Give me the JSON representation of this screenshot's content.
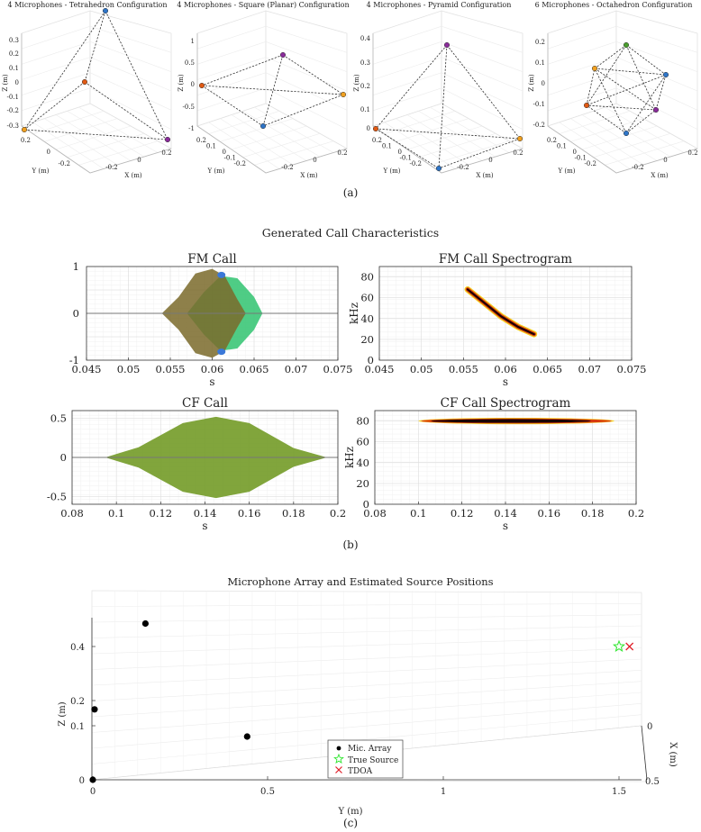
{
  "panel_labels": {
    "a": "(a)",
    "b": "(b)",
    "c": "(c)"
  },
  "panel_a": {
    "plots": [
      {
        "title": "4 Microphones - Tetrahedron Configuration",
        "z_label": "Z (m)",
        "y_label": "Y (m)",
        "x_label": "X (m)",
        "z_ticks": [
          "0.3",
          "0.2",
          "0.1",
          "0",
          "-0.1",
          "-0.2",
          "-0.3"
        ],
        "y_ticks": [
          "0.2",
          "0",
          "-0.2"
        ],
        "x_ticks": [
          "-0.2",
          "0",
          "0.2"
        ]
      },
      {
        "title": "4 Microphones - Square (Planar) Configuration",
        "z_label": "Z (m)",
        "y_label": "Y (m)",
        "x_label": "X (m)",
        "z_ticks": [
          "1",
          "0.5",
          "0",
          "-0.5",
          "-1"
        ],
        "y_ticks": [
          "0.2",
          "0.1",
          "0",
          "-0.1",
          "-0.2"
        ],
        "x_ticks": [
          "-0.2",
          "0",
          "0.2"
        ]
      },
      {
        "title": "4 Microphones - Pyramid Configuration",
        "z_label": "Z (m)",
        "y_label": "Y (m)",
        "x_label": "X (m)",
        "z_ticks": [
          "0.4",
          "0.3",
          "0.2",
          "0.1",
          "0"
        ],
        "y_ticks": [
          "0.2",
          "0.1",
          "0",
          "-0.1",
          "-0.2"
        ],
        "x_ticks": [
          "-0.2",
          "0",
          "0.2"
        ]
      },
      {
        "title": "6 Microphones - Octahedron Configuration",
        "z_label": "Z (m)",
        "y_label": "Y (m)",
        "x_label": "X (m)",
        "z_ticks": [
          "0.2",
          "0.1",
          "0",
          "-0.1",
          "-0.2"
        ],
        "y_ticks": [
          "0.2",
          "0.1",
          "0",
          "-0.1",
          "-0.2"
        ],
        "x_ticks": [
          "-0.2",
          "0",
          "0.2"
        ]
      }
    ]
  },
  "panel_b": {
    "super_title": "Generated Call Characteristics",
    "fm_call": {
      "title": "FM Call",
      "xlabel": "s",
      "xticks": [
        "0.045",
        "0.05",
        "0.055",
        "0.06",
        "0.065",
        "0.07",
        "0.075"
      ],
      "yticks": [
        "1",
        "0",
        "-1"
      ]
    },
    "fm_spec": {
      "title": "FM Call Spectrogram",
      "xlabel": "s",
      "ylabel": "kHz",
      "xticks": [
        "0.045",
        "0.05",
        "0.055",
        "0.06",
        "0.065",
        "0.07",
        "0.075"
      ],
      "yticks": [
        "80",
        "60",
        "40",
        "20",
        "0"
      ]
    },
    "cf_call": {
      "title": "CF Call",
      "xlabel": "s",
      "xticks": [
        "0.08",
        "0.1",
        "0.12",
        "0.14",
        "0.16",
        "0.18",
        "0.2"
      ],
      "yticks": [
        "0.5",
        "0",
        "-0.5"
      ]
    },
    "cf_spec": {
      "title": "CF Call Spectrogram",
      "xlabel": "s",
      "ylabel": "kHz",
      "xticks": [
        "0.08",
        "0.1",
        "0.12",
        "0.14",
        "0.16",
        "0.18",
        "0.2"
      ],
      "yticks": [
        "80",
        "60",
        "40",
        "20",
        "0"
      ]
    }
  },
  "panel_c": {
    "title": "Microphone Array and Estimated Source Positions",
    "xlabel": "Y (m)",
    "ylabel": "Z (m)",
    "depth_label": "X (m)",
    "xticks": [
      "0",
      "0.5",
      "1",
      "1.5"
    ],
    "yticks": [
      "0.4",
      "0.2",
      "0.1",
      "0"
    ],
    "depth_ticks": [
      "0",
      "0.5"
    ],
    "legend": [
      "Mic. Array",
      "True Source",
      "TDOA"
    ]
  },
  "chart_data": [
    {
      "type": "scatter",
      "title": "4 Microphones - Tetrahedron Configuration",
      "xlabel": "X (m)",
      "ylabel": "Y (m)",
      "zlabel": "Z (m)",
      "grid": true,
      "zlim": [
        -0.3,
        0.3
      ],
      "xlim": [
        -0.2,
        0.2
      ],
      "ylim": [
        -0.2,
        0.2
      ]
    },
    {
      "type": "scatter",
      "title": "4 Microphones - Square (Planar) Configuration",
      "xlabel": "X (m)",
      "ylabel": "Y (m)",
      "zlabel": "Z (m)",
      "grid": true,
      "zlim": [
        -1,
        1
      ],
      "xlim": [
        -0.2,
        0.2
      ],
      "ylim": [
        -0.2,
        0.2
      ]
    },
    {
      "type": "scatter",
      "title": "4 Microphones - Pyramid Configuration",
      "xlabel": "X (m)",
      "ylabel": "Y (m)",
      "zlabel": "Z (m)",
      "grid": true,
      "zlim": [
        0,
        0.4
      ],
      "xlim": [
        -0.2,
        0.2
      ],
      "ylim": [
        -0.2,
        0.2
      ]
    },
    {
      "type": "scatter",
      "title": "6 Microphones - Octahedron Configuration",
      "xlabel": "X (m)",
      "ylabel": "Y (m)",
      "zlabel": "Z (m)",
      "grid": true,
      "zlim": [
        -0.2,
        0.2
      ],
      "xlim": [
        -0.2,
        0.2
      ],
      "ylim": [
        -0.2,
        0.2
      ]
    },
    {
      "type": "area",
      "title": "FM Call",
      "xlabel": "s",
      "grid": true,
      "xlim": [
        0.045,
        0.075
      ],
      "ylim": [
        -1,
        1
      ],
      "series": [
        {
          "color": "#7a6a2a",
          "x": [
            0.045,
            0.054,
            0.056,
            0.058,
            0.06,
            0.0615,
            0.063,
            0.064,
            0.075
          ],
          "values": [
            0,
            0,
            0.35,
            0.85,
            0.95,
            0.8,
            0.3,
            0,
            0
          ]
        },
        {
          "color": "#3cc678",
          "x": [
            0.045,
            0.057,
            0.059,
            0.061,
            0.063,
            0.065,
            0.066,
            0.075
          ],
          "values": [
            0,
            0,
            0.45,
            0.8,
            0.75,
            0.35,
            0,
            0
          ]
        }
      ]
    },
    {
      "type": "heatmap",
      "title": "FM Call Spectrogram",
      "xlabel": "s",
      "ylabel": "kHz",
      "grid": true,
      "xlim": [
        0.045,
        0.075
      ],
      "ylim": [
        0,
        90
      ],
      "ridge": {
        "x": [
          0.0555,
          0.0575,
          0.0595,
          0.0615,
          0.0634
        ],
        "y": [
          68,
          55,
          42,
          32,
          25
        ]
      }
    },
    {
      "type": "area",
      "title": "CF Call",
      "xlabel": "s",
      "grid": true,
      "xlim": [
        0.08,
        0.2
      ],
      "ylim": [
        -0.6,
        0.6
      ],
      "series": [
        {
          "color": "#7f9a2e",
          "x": [
            0.08,
            0.095,
            0.11,
            0.13,
            0.145,
            0.16,
            0.18,
            0.195,
            0.2
          ],
          "values": [
            0,
            0,
            0.13,
            0.44,
            0.52,
            0.44,
            0.12,
            0,
            0
          ]
        }
      ]
    },
    {
      "type": "heatmap",
      "title": "CF Call Spectrogram",
      "xlabel": "s",
      "ylabel": "kHz",
      "grid": true,
      "xlim": [
        0.08,
        0.2
      ],
      "ylim": [
        0,
        90
      ],
      "ridge": {
        "x": [
          0.1,
          0.19
        ],
        "y": [
          80,
          80
        ]
      }
    },
    {
      "type": "scatter",
      "title": "Microphone Array and Estimated Source Positions",
      "xlabel": "Y (m)",
      "ylabel": "Z (m)",
      "grid": true,
      "series": [
        {
          "name": "Mic. Array",
          "color": "#000000",
          "x": [
            0,
            0.005,
            0.15,
            0.44
          ],
          "y": [
            0,
            0.165,
            0.485,
            0.08
          ]
        },
        {
          "name": "True Source",
          "color": "#2ee62e",
          "x": [
            1.5
          ],
          "y": [
            0.4
          ]
        },
        {
          "name": "TDOA",
          "color": "#e0202a",
          "x": [
            1.53
          ],
          "y": [
            0.4
          ]
        }
      ]
    }
  ]
}
